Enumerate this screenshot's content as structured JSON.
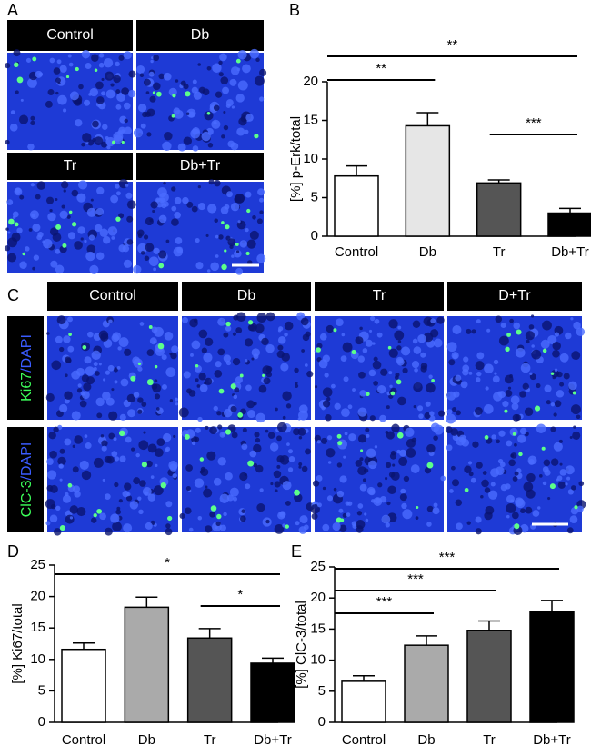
{
  "panel_a": {
    "label": "A",
    "headers": [
      "Control",
      "Db",
      "Tr",
      "Db+Tr"
    ]
  },
  "panel_c": {
    "label": "C",
    "headers": [
      "Control",
      "Db",
      "Tr",
      "D+Tr"
    ],
    "rows": [
      {
        "marker": "Ki67",
        "stain": "/DAPI"
      },
      {
        "marker": "ClC-3",
        "stain": "/DAPI"
      }
    ]
  },
  "chart_data": [
    {
      "type": "bar",
      "panel": "B",
      "y_label": "[%] p-Erk/total",
      "categories": [
        "Control",
        "Db",
        "Tr",
        "Db+Tr"
      ],
      "values": [
        7.8,
        14.3,
        6.9,
        3.0
      ],
      "errors": [
        1.3,
        1.7,
        0.4,
        0.6
      ],
      "colors": [
        "#ffffff",
        "#e6e6e6",
        "#555555",
        "#000000"
      ],
      "ylim": [
        0,
        20
      ],
      "yticks": [
        0,
        5,
        10,
        15,
        20
      ],
      "annotations": [
        {
          "text": "**",
          "from": "Control",
          "to": "Db+Tr"
        },
        {
          "text": "**",
          "from": "Control",
          "to": "Db"
        },
        {
          "text": "***",
          "from": "Tr",
          "to": "Db+Tr"
        }
      ]
    },
    {
      "type": "bar",
      "panel": "D",
      "y_label": "[%] Ki67/total",
      "categories": [
        "Control",
        "Db",
        "Tr",
        "Db+Tr"
      ],
      "values": [
        11.6,
        18.3,
        13.4,
        9.4
      ],
      "errors": [
        1.0,
        1.6,
        1.5,
        0.8
      ],
      "colors": [
        "#ffffff",
        "#aaaaaa",
        "#555555",
        "#000000"
      ],
      "ylim": [
        0,
        25
      ],
      "yticks": [
        0,
        5,
        10,
        15,
        20,
        25
      ],
      "annotations": [
        {
          "text": "*",
          "from": "Control",
          "to": "Db+Tr"
        },
        {
          "text": "*",
          "from": "Tr",
          "to": "Db+Tr"
        }
      ]
    },
    {
      "type": "bar",
      "panel": "E",
      "y_label": "[%] ClC-3/total",
      "categories": [
        "Control",
        "Db",
        "Tr",
        "Db+Tr"
      ],
      "values": [
        6.6,
        12.4,
        14.8,
        17.8
      ],
      "errors": [
        0.9,
        1.5,
        1.5,
        1.8
      ],
      "colors": [
        "#ffffff",
        "#aaaaaa",
        "#555555",
        "#000000"
      ],
      "ylim": [
        0,
        25
      ],
      "yticks": [
        0,
        5,
        10,
        15,
        20,
        25
      ],
      "annotations": [
        {
          "text": "***",
          "from": "Control",
          "to": "Db+Tr"
        },
        {
          "text": "***",
          "from": "Control",
          "to": "Tr"
        },
        {
          "text": "***",
          "from": "Control",
          "to": "Db"
        }
      ]
    }
  ]
}
